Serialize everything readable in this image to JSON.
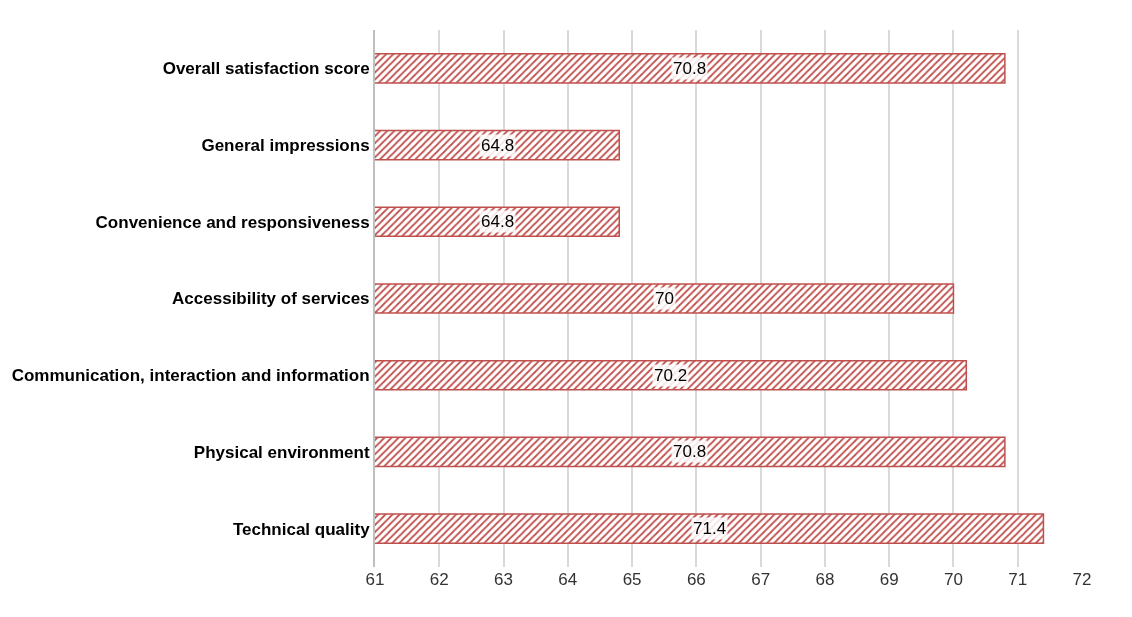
{
  "chart_data": {
    "type": "bar",
    "orientation": "horizontal",
    "categories": [
      "Overall satisfaction score",
      "General impressions",
      "Convenience and responsiveness",
      "Accessibility of services",
      "Communication, interaction and information",
      "Physical environment",
      "Technical quality"
    ],
    "values": [
      70.8,
      64.8,
      64.8,
      70,
      70.2,
      70.8,
      71.4
    ],
    "color": "#c0504d",
    "xlim": [
      61,
      72
    ],
    "xticks": [
      61,
      62,
      63,
      64,
      65,
      66,
      67,
      68,
      69,
      70,
      71,
      72
    ],
    "grid": "x",
    "data_labels": true
  }
}
